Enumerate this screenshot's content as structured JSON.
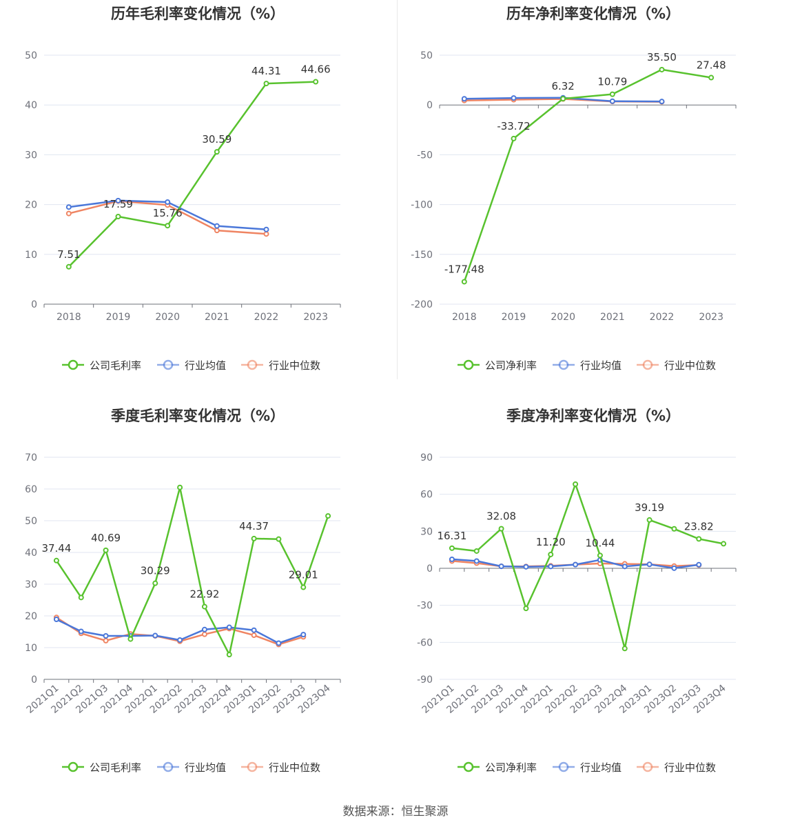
{
  "source": "数据来源：恒生聚源",
  "colors": {
    "company": "#58c22e",
    "avg": "#4a77d9",
    "median": "#ef8462"
  },
  "chart_data": [
    {
      "id": "annual-gross",
      "title": "历年毛利率变化情况（%）",
      "type": "line",
      "categories": [
        "2018",
        "2019",
        "2020",
        "2021",
        "2022",
        "2023"
      ],
      "ylim": [
        0,
        50
      ],
      "yticks": [
        0,
        10,
        20,
        30,
        40,
        50
      ],
      "series": [
        {
          "name": "公司毛利率",
          "values": [
            7.51,
            17.59,
            15.76,
            30.59,
            44.31,
            44.66
          ],
          "labels": [
            "7.51",
            "17.59",
            "15.76",
            "30.59",
            "44.31",
            "44.66"
          ]
        },
        {
          "name": "行业均值",
          "values": [
            19.5,
            20.8,
            20.5,
            15.7,
            15.0,
            null
          ]
        },
        {
          "name": "行业中位数",
          "values": [
            18.2,
            20.7,
            19.9,
            14.8,
            14.1,
            null
          ]
        }
      ]
    },
    {
      "id": "annual-net",
      "title": "历年净利率变化情况（%）",
      "type": "line",
      "categories": [
        "2018",
        "2019",
        "2020",
        "2021",
        "2022",
        "2023"
      ],
      "ylim": [
        -200,
        50
      ],
      "yticks": [
        -200,
        -150,
        -100,
        -50,
        0,
        50
      ],
      "series": [
        {
          "name": "公司净利率",
          "values": [
            -177.48,
            -33.72,
            6.32,
            10.79,
            35.5,
            27.48
          ],
          "labels": [
            "-177.48",
            "-33.72",
            "6.32",
            "10.79",
            "35.50",
            "27.48"
          ]
        },
        {
          "name": "行业均值",
          "values": [
            6.2,
            7.0,
            7.2,
            3.8,
            3.5,
            null
          ]
        },
        {
          "name": "行业中位数",
          "values": [
            4.5,
            5.3,
            6.0,
            3.5,
            3.2,
            null
          ]
        }
      ]
    },
    {
      "id": "quarter-gross",
      "title": "季度毛利率变化情况（%）",
      "type": "line",
      "categories": [
        "2021Q1",
        "2021Q2",
        "2021Q3",
        "2021Q4",
        "2022Q1",
        "2022Q2",
        "2022Q3",
        "2022Q4",
        "2023Q1",
        "2023Q2",
        "2023Q3",
        "2023Q4"
      ],
      "ylim": [
        0,
        70
      ],
      "yticks": [
        0,
        10,
        20,
        30,
        40,
        50,
        60,
        70
      ],
      "rotated": true,
      "series": [
        {
          "name": "公司毛利率",
          "values": [
            37.44,
            25.8,
            40.69,
            12.7,
            30.29,
            60.5,
            22.92,
            7.8,
            44.37,
            44.2,
            29.01,
            51.5
          ],
          "labels": [
            "37.44",
            "",
            "40.69",
            "",
            "30.29",
            "",
            "22.92",
            "",
            "44.37",
            "",
            "29.01",
            ""
          ]
        },
        {
          "name": "行业均值",
          "values": [
            18.9,
            15.1,
            13.7,
            13.7,
            13.8,
            12.4,
            15.7,
            16.4,
            15.5,
            11.4,
            14.1,
            null
          ]
        },
        {
          "name": "行业中位数",
          "values": [
            19.5,
            14.5,
            12.2,
            14.3,
            13.7,
            12.0,
            14.2,
            16.0,
            13.9,
            11.0,
            13.4,
            null
          ]
        }
      ]
    },
    {
      "id": "quarter-net",
      "title": "季度净利率变化情况（%）",
      "type": "line",
      "categories": [
        "2021Q1",
        "2021Q2",
        "2021Q3",
        "2021Q4",
        "2022Q1",
        "2022Q2",
        "2022Q3",
        "2022Q4",
        "2023Q1",
        "2023Q2",
        "2023Q3",
        "2023Q4"
      ],
      "ylim": [
        -90,
        90
      ],
      "yticks": [
        -90,
        -60,
        -30,
        0,
        30,
        60,
        90
      ],
      "rotated": true,
      "series": [
        {
          "name": "公司净利率",
          "values": [
            16.31,
            14.0,
            32.08,
            -32.5,
            11.2,
            68.2,
            10.44,
            -65.0,
            39.19,
            32.0,
            23.82,
            19.9
          ],
          "labels": [
            "16.31",
            "",
            "32.08",
            "",
            "11.20",
            "",
            "10.44",
            "",
            "39.19",
            "",
            "23.82",
            ""
          ]
        },
        {
          "name": "行业均值",
          "values": [
            7.3,
            5.9,
            1.6,
            1.2,
            1.5,
            3.0,
            6.8,
            1.5,
            3.2,
            0.1,
            2.9,
            null
          ]
        },
        {
          "name": "行业中位数",
          "values": [
            5.9,
            4.2,
            1.6,
            1.5,
            2.0,
            3.0,
            3.9,
            3.6,
            3.2,
            1.8,
            2.6,
            null
          ]
        }
      ]
    }
  ]
}
